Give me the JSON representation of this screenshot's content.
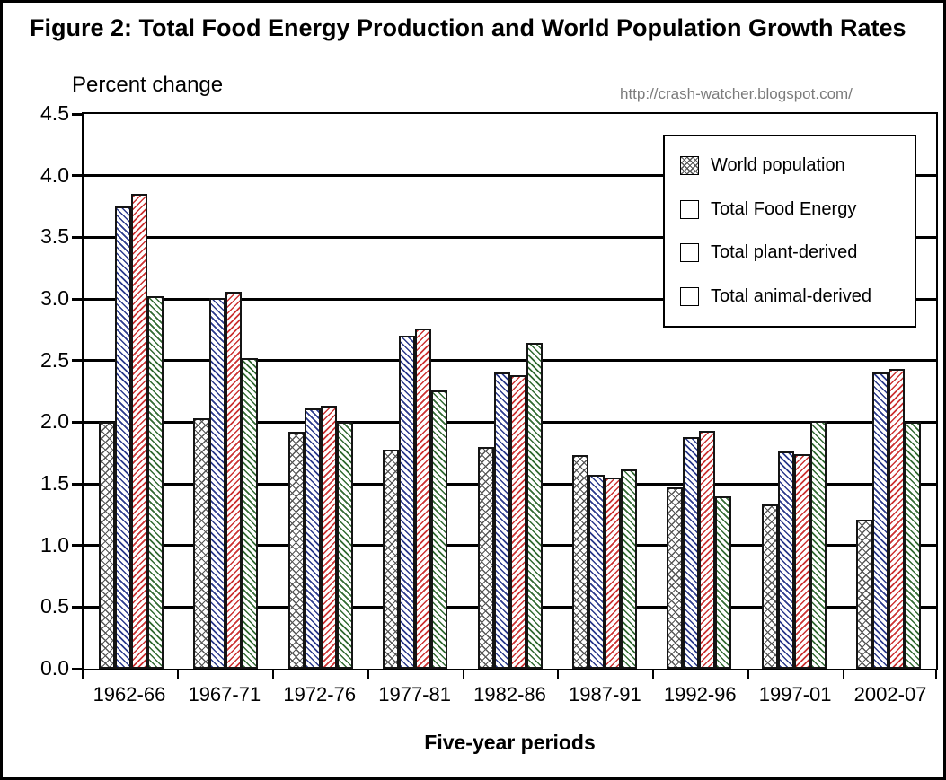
{
  "figure": {
    "title": "Figure 2: Total Food Energy Production and World Population Growth Rates",
    "source_url": "http://crash-watcher.blogspot.com/"
  },
  "chart_data": {
    "type": "bar",
    "title": "Figure 2: Total Food Energy Production and World Population Growth Rates",
    "source_url": "http://crash-watcher.blogspot.com/",
    "ylabel": "Percent change",
    "xlabel": "Five-year periods",
    "ylim": [
      0,
      4.5
    ],
    "ytick_step": 0.5,
    "yticks": [
      "4.5",
      "4.0",
      "3.5",
      "3.0",
      "2.5",
      "2.0",
      "1.5",
      "1.0",
      "0.5",
      "0.0"
    ],
    "grid": "horizontal",
    "legend_position": "top-right-inside",
    "categories": [
      "1962-66",
      "1967-71",
      "1972-76",
      "1977-81",
      "1982-86",
      "1987-91",
      "1992-96",
      "1997-01",
      "2002-07"
    ],
    "series": [
      {
        "name": "World population",
        "pattern": "crosshatch",
        "color": "#565656",
        "values": [
          2.0,
          2.03,
          1.92,
          1.78,
          1.8,
          1.73,
          1.47,
          1.33,
          1.21
        ]
      },
      {
        "name": "Total Food Energy",
        "pattern": "diagonal-down",
        "color": "#2b3a8c",
        "values": [
          3.75,
          3.01,
          2.11,
          2.7,
          2.4,
          1.57,
          1.88,
          1.76,
          2.4
        ]
      },
      {
        "name": "Total plant-derived",
        "pattern": "diagonal-up",
        "color": "#cc3333",
        "values": [
          3.85,
          3.06,
          2.13,
          2.76,
          2.38,
          1.55,
          1.93,
          1.74,
          2.43
        ]
      },
      {
        "name": "Total animal-derived",
        "pattern": "diagonal-down",
        "color": "#336b33",
        "values": [
          3.02,
          2.52,
          2.0,
          2.26,
          2.64,
          1.62,
          1.4,
          2.01,
          2.0
        ]
      }
    ]
  }
}
